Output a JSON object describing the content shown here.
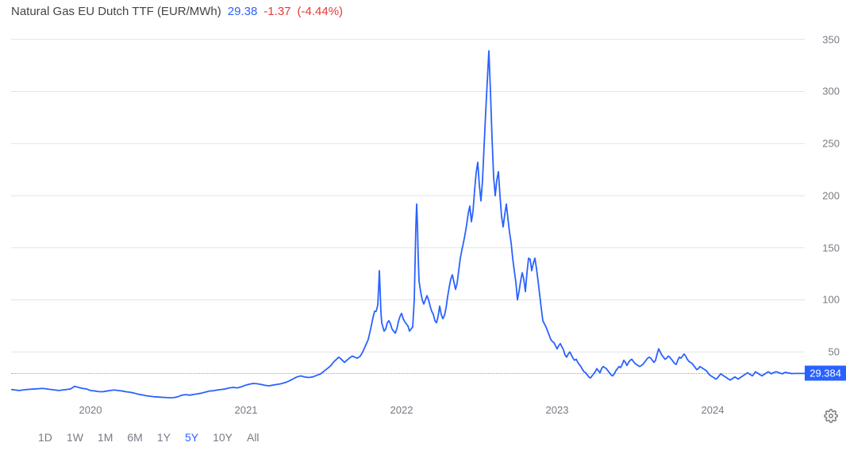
{
  "header": {
    "title": "Natural Gas EU Dutch TTF (EUR/MWh)",
    "price": "29.38",
    "change": "-1.37",
    "change_pct": "(-4.44%)"
  },
  "chart": {
    "type": "line",
    "line_color": "#2962ff",
    "line_width": 1.8,
    "background_color": "#ffffff",
    "grid_color": "#e0e3eb",
    "ylim": [
      0,
      365
    ],
    "ytick_step": 50,
    "yticks": [
      50,
      100,
      150,
      200,
      250,
      300,
      350
    ],
    "y_label_color": "#787b86",
    "y_label_fontsize": 13,
    "x_label_color": "#787b86",
    "x_label_fontsize": 13,
    "current_value": 29.384,
    "current_badge_label": "29.384",
    "badge_bg": "#2962ff",
    "badge_text_color": "#ffffff",
    "xticks": [
      {
        "pos": 0.1,
        "label": "2020"
      },
      {
        "pos": 0.296,
        "label": "2021"
      },
      {
        "pos": 0.492,
        "label": "2022"
      },
      {
        "pos": 0.688,
        "label": "2023"
      },
      {
        "pos": 0.884,
        "label": "2024"
      }
    ],
    "series": [
      [
        0.0,
        14
      ],
      [
        0.01,
        13
      ],
      [
        0.02,
        14
      ],
      [
        0.03,
        14.5
      ],
      [
        0.04,
        15
      ],
      [
        0.05,
        14
      ],
      [
        0.055,
        13.5
      ],
      [
        0.06,
        13
      ],
      [
        0.065,
        13.5
      ],
      [
        0.07,
        14
      ],
      [
        0.075,
        14.5
      ],
      [
        0.08,
        17
      ],
      [
        0.085,
        16
      ],
      [
        0.09,
        15
      ],
      [
        0.095,
        14.5
      ],
      [
        0.1,
        13
      ],
      [
        0.105,
        12.6
      ],
      [
        0.11,
        12
      ],
      [
        0.115,
        11.8
      ],
      [
        0.12,
        12.4
      ],
      [
        0.125,
        13
      ],
      [
        0.13,
        13.5
      ],
      [
        0.135,
        13
      ],
      [
        0.14,
        12.5
      ],
      [
        0.145,
        11.8
      ],
      [
        0.15,
        11.3
      ],
      [
        0.155,
        10.5
      ],
      [
        0.16,
        9.5
      ],
      [
        0.165,
        8.8
      ],
      [
        0.17,
        8
      ],
      [
        0.175,
        7.5
      ],
      [
        0.18,
        7
      ],
      [
        0.185,
        6.8
      ],
      [
        0.19,
        6.5
      ],
      [
        0.195,
        6.3
      ],
      [
        0.2,
        6
      ],
      [
        0.205,
        6.2
      ],
      [
        0.21,
        7
      ],
      [
        0.215,
        8.5
      ],
      [
        0.22,
        9
      ],
      [
        0.225,
        8.5
      ],
      [
        0.23,
        9.2
      ],
      [
        0.235,
        9.8
      ],
      [
        0.24,
        10.5
      ],
      [
        0.245,
        11.5
      ],
      [
        0.25,
        12.5
      ],
      [
        0.255,
        12.8
      ],
      [
        0.26,
        13.5
      ],
      [
        0.265,
        14
      ],
      [
        0.27,
        14.5
      ],
      [
        0.275,
        15.5
      ],
      [
        0.28,
        16
      ],
      [
        0.285,
        15.5
      ],
      [
        0.29,
        16.5
      ],
      [
        0.295,
        18
      ],
      [
        0.3,
        19
      ],
      [
        0.305,
        19.8
      ],
      [
        0.31,
        19.5
      ],
      [
        0.315,
        18.8
      ],
      [
        0.32,
        18
      ],
      [
        0.325,
        17.5
      ],
      [
        0.33,
        18.2
      ],
      [
        0.335,
        18.8
      ],
      [
        0.34,
        19.5
      ],
      [
        0.345,
        20.5
      ],
      [
        0.35,
        22
      ],
      [
        0.355,
        24
      ],
      [
        0.36,
        26
      ],
      [
        0.365,
        27
      ],
      [
        0.37,
        26
      ],
      [
        0.375,
        25.5
      ],
      [
        0.38,
        26
      ],
      [
        0.385,
        27.5
      ],
      [
        0.39,
        29
      ],
      [
        0.395,
        32
      ],
      [
        0.4,
        35
      ],
      [
        0.403,
        37
      ],
      [
        0.406,
        40
      ],
      [
        0.41,
        43
      ],
      [
        0.413,
        45
      ],
      [
        0.416,
        43
      ],
      [
        0.42,
        40
      ],
      [
        0.423,
        42
      ],
      [
        0.426,
        44
      ],
      [
        0.43,
        46
      ],
      [
        0.433,
        45
      ],
      [
        0.436,
        44
      ],
      [
        0.44,
        46
      ],
      [
        0.443,
        50
      ],
      [
        0.446,
        55
      ],
      [
        0.45,
        62
      ],
      [
        0.453,
        72
      ],
      [
        0.456,
        83
      ],
      [
        0.458,
        89
      ],
      [
        0.46,
        89
      ],
      [
        0.462,
        95
      ],
      [
        0.463,
        110
      ],
      [
        0.464,
        128
      ],
      [
        0.465,
        109
      ],
      [
        0.466,
        88
      ],
      [
        0.467,
        78
      ],
      [
        0.47,
        70
      ],
      [
        0.472,
        72
      ],
      [
        0.474,
        78
      ],
      [
        0.476,
        80
      ],
      [
        0.478,
        77
      ],
      [
        0.48,
        72
      ],
      [
        0.482,
        70
      ],
      [
        0.484,
        68
      ],
      [
        0.486,
        72
      ],
      [
        0.488,
        79
      ],
      [
        0.49,
        84
      ],
      [
        0.492,
        87
      ],
      [
        0.494,
        82
      ],
      [
        0.496,
        79
      ],
      [
        0.498,
        77
      ],
      [
        0.5,
        75
      ],
      [
        0.502,
        70
      ],
      [
        0.504,
        72
      ],
      [
        0.506,
        74
      ],
      [
        0.508,
        100
      ],
      [
        0.509,
        135
      ],
      [
        0.51,
        170
      ],
      [
        0.511,
        192
      ],
      [
        0.512,
        172
      ],
      [
        0.513,
        140
      ],
      [
        0.514,
        118
      ],
      [
        0.516,
        108
      ],
      [
        0.518,
        100
      ],
      [
        0.52,
        96
      ],
      [
        0.522,
        100
      ],
      [
        0.524,
        104
      ],
      [
        0.526,
        100
      ],
      [
        0.528,
        94
      ],
      [
        0.53,
        89
      ],
      [
        0.532,
        86
      ],
      [
        0.534,
        80
      ],
      [
        0.536,
        78
      ],
      [
        0.538,
        84
      ],
      [
        0.54,
        94
      ],
      [
        0.542,
        86
      ],
      [
        0.544,
        82
      ],
      [
        0.546,
        85
      ],
      [
        0.548,
        92
      ],
      [
        0.55,
        103
      ],
      [
        0.552,
        112
      ],
      [
        0.554,
        120
      ],
      [
        0.556,
        124
      ],
      [
        0.558,
        117
      ],
      [
        0.56,
        110
      ],
      [
        0.562,
        116
      ],
      [
        0.564,
        128
      ],
      [
        0.566,
        140
      ],
      [
        0.568,
        148
      ],
      [
        0.57,
        155
      ],
      [
        0.572,
        163
      ],
      [
        0.574,
        172
      ],
      [
        0.576,
        183
      ],
      [
        0.578,
        190
      ],
      [
        0.58,
        175
      ],
      [
        0.582,
        185
      ],
      [
        0.584,
        205
      ],
      [
        0.586,
        222
      ],
      [
        0.588,
        232
      ],
      [
        0.59,
        210
      ],
      [
        0.592,
        195
      ],
      [
        0.594,
        215
      ],
      [
        0.596,
        248
      ],
      [
        0.598,
        280
      ],
      [
        0.6,
        310
      ],
      [
        0.602,
        339
      ],
      [
        0.604,
        300
      ],
      [
        0.606,
        255
      ],
      [
        0.608,
        218
      ],
      [
        0.61,
        200
      ],
      [
        0.612,
        215
      ],
      [
        0.614,
        223
      ],
      [
        0.616,
        200
      ],
      [
        0.618,
        180
      ],
      [
        0.62,
        170
      ],
      [
        0.622,
        182
      ],
      [
        0.624,
        192
      ],
      [
        0.626,
        178
      ],
      [
        0.628,
        165
      ],
      [
        0.63,
        155
      ],
      [
        0.632,
        140
      ],
      [
        0.634,
        128
      ],
      [
        0.636,
        117
      ],
      [
        0.638,
        100
      ],
      [
        0.64,
        108
      ],
      [
        0.642,
        118
      ],
      [
        0.644,
        126
      ],
      [
        0.646,
        120
      ],
      [
        0.648,
        108
      ],
      [
        0.65,
        126
      ],
      [
        0.652,
        140
      ],
      [
        0.654,
        139
      ],
      [
        0.656,
        128
      ],
      [
        0.658,
        135
      ],
      [
        0.66,
        140
      ],
      [
        0.662,
        130
      ],
      [
        0.664,
        118
      ],
      [
        0.666,
        105
      ],
      [
        0.668,
        92
      ],
      [
        0.67,
        80
      ],
      [
        0.672,
        77
      ],
      [
        0.674,
        74
      ],
      [
        0.676,
        70
      ],
      [
        0.678,
        66
      ],
      [
        0.68,
        62
      ],
      [
        0.682,
        60
      ],
      [
        0.684,
        59
      ],
      [
        0.686,
        56
      ],
      [
        0.688,
        53
      ],
      [
        0.69,
        56
      ],
      [
        0.692,
        58
      ],
      [
        0.694,
        55
      ],
      [
        0.696,
        52
      ],
      [
        0.698,
        47
      ],
      [
        0.7,
        45
      ],
      [
        0.702,
        48
      ],
      [
        0.704,
        50
      ],
      [
        0.706,
        47
      ],
      [
        0.708,
        44
      ],
      [
        0.71,
        42
      ],
      [
        0.712,
        43
      ],
      [
        0.714,
        40
      ],
      [
        0.716,
        38
      ],
      [
        0.718,
        36
      ],
      [
        0.72,
        33
      ],
      [
        0.722,
        31
      ],
      [
        0.724,
        30
      ],
      [
        0.726,
        28
      ],
      [
        0.728,
        26
      ],
      [
        0.73,
        25
      ],
      [
        0.732,
        27
      ],
      [
        0.734,
        29
      ],
      [
        0.736,
        31
      ],
      [
        0.738,
        34
      ],
      [
        0.74,
        32
      ],
      [
        0.742,
        30
      ],
      [
        0.744,
        34
      ],
      [
        0.746,
        36
      ],
      [
        0.748,
        35
      ],
      [
        0.75,
        34
      ],
      [
        0.752,
        32
      ],
      [
        0.754,
        30
      ],
      [
        0.756,
        28
      ],
      [
        0.758,
        27
      ],
      [
        0.76,
        29
      ],
      [
        0.762,
        32
      ],
      [
        0.764,
        34
      ],
      [
        0.766,
        36
      ],
      [
        0.768,
        35
      ],
      [
        0.77,
        38
      ],
      [
        0.772,
        42
      ],
      [
        0.774,
        40
      ],
      [
        0.776,
        37
      ],
      [
        0.778,
        40
      ],
      [
        0.78,
        42
      ],
      [
        0.782,
        43
      ],
      [
        0.784,
        41
      ],
      [
        0.786,
        39
      ],
      [
        0.788,
        38
      ],
      [
        0.79,
        37
      ],
      [
        0.792,
        36
      ],
      [
        0.794,
        37
      ],
      [
        0.796,
        38
      ],
      [
        0.798,
        40
      ],
      [
        0.8,
        42
      ],
      [
        0.802,
        44
      ],
      [
        0.804,
        45
      ],
      [
        0.806,
        44
      ],
      [
        0.808,
        42
      ],
      [
        0.81,
        40
      ],
      [
        0.812,
        42
      ],
      [
        0.814,
        48
      ],
      [
        0.816,
        53
      ],
      [
        0.818,
        50
      ],
      [
        0.82,
        47
      ],
      [
        0.822,
        45
      ],
      [
        0.824,
        43
      ],
      [
        0.826,
        44
      ],
      [
        0.828,
        46
      ],
      [
        0.83,
        45
      ],
      [
        0.832,
        43
      ],
      [
        0.834,
        41
      ],
      [
        0.836,
        39
      ],
      [
        0.838,
        38
      ],
      [
        0.84,
        42
      ],
      [
        0.842,
        45
      ],
      [
        0.844,
        44
      ],
      [
        0.846,
        46
      ],
      [
        0.848,
        48
      ],
      [
        0.85,
        46
      ],
      [
        0.852,
        43
      ],
      [
        0.854,
        41
      ],
      [
        0.856,
        40
      ],
      [
        0.858,
        39
      ],
      [
        0.86,
        37
      ],
      [
        0.862,
        35
      ],
      [
        0.864,
        33
      ],
      [
        0.866,
        34
      ],
      [
        0.868,
        36
      ],
      [
        0.87,
        35
      ],
      [
        0.872,
        34
      ],
      [
        0.874,
        33
      ],
      [
        0.876,
        32
      ],
      [
        0.878,
        30
      ],
      [
        0.88,
        28
      ],
      [
        0.882,
        27
      ],
      [
        0.884,
        26
      ],
      [
        0.886,
        25
      ],
      [
        0.888,
        24
      ],
      [
        0.89,
        25
      ],
      [
        0.892,
        27
      ],
      [
        0.894,
        29
      ],
      [
        0.896,
        28
      ],
      [
        0.898,
        27
      ],
      [
        0.9,
        26
      ],
      [
        0.902,
        25
      ],
      [
        0.904,
        24
      ],
      [
        0.906,
        23
      ],
      [
        0.908,
        24
      ],
      [
        0.91,
        25
      ],
      [
        0.912,
        26
      ],
      [
        0.914,
        25
      ],
      [
        0.916,
        24
      ],
      [
        0.918,
        25
      ],
      [
        0.92,
        26
      ],
      [
        0.922,
        27
      ],
      [
        0.924,
        28
      ],
      [
        0.926,
        29
      ],
      [
        0.928,
        30
      ],
      [
        0.93,
        29
      ],
      [
        0.932,
        28
      ],
      [
        0.934,
        27
      ],
      [
        0.936,
        29
      ],
      [
        0.938,
        31
      ],
      [
        0.94,
        30
      ],
      [
        0.942,
        29
      ],
      [
        0.944,
        28
      ],
      [
        0.946,
        27
      ],
      [
        0.948,
        28
      ],
      [
        0.95,
        29
      ],
      [
        0.952,
        30
      ],
      [
        0.954,
        31
      ],
      [
        0.956,
        30
      ],
      [
        0.958,
        29
      ],
      [
        0.96,
        30
      ],
      [
        0.962,
        30.5
      ],
      [
        0.964,
        31
      ],
      [
        0.966,
        30.5
      ],
      [
        0.968,
        30
      ],
      [
        0.97,
        29.5
      ],
      [
        0.972,
        29
      ],
      [
        0.974,
        30
      ],
      [
        0.976,
        30.5
      ],
      [
        0.978,
        30
      ],
      [
        0.98,
        29.8
      ],
      [
        0.982,
        29.5
      ],
      [
        0.984,
        29.2
      ],
      [
        0.986,
        29.4
      ],
      [
        0.988,
        29.384
      ],
      [
        1.0,
        29.384
      ]
    ]
  },
  "ranges": {
    "items": [
      "1D",
      "1W",
      "1M",
      "6M",
      "1Y",
      "5Y",
      "10Y",
      "All"
    ],
    "active": "5Y"
  }
}
